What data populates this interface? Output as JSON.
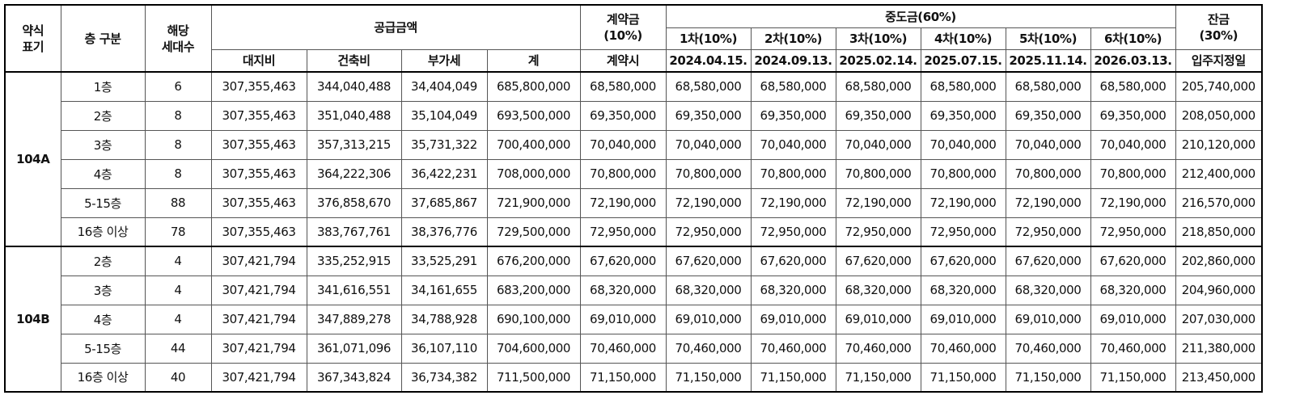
{
  "header": {
    "type_label": "약식\n표기",
    "floor_label": "층 구분",
    "units_label": "해당\n세대수",
    "supply_label": "공급금액",
    "supply_cols": [
      "대지비",
      "건축비",
      "부가세",
      "계"
    ],
    "contract_label": "계약금\n(10%)",
    "contract_sub": "계약시",
    "middle_label": "중도금(60%)",
    "middle_cols": [
      "1차(10%)",
      "2차(10%)",
      "3차(10%)",
      "4차(10%)",
      "5차(10%)",
      "6차(10%)"
    ],
    "middle_dates": [
      "2024.04.15.",
      "2024.09.13.",
      "2025.02.14.",
      "2025.07.15.",
      "2025.11.14.",
      "2026.03.13."
    ],
    "balance_label": "잔금\n(30%)",
    "balance_sub": "입주지정일"
  },
  "groups": [
    {
      "type": "104A",
      "rows": [
        {
          "floor": "1층",
          "units": "6",
          "land": "307,355,463",
          "build": "344,040,488",
          "vat": "34,404,049",
          "total": "685,800,000",
          "contract": "68,580,000",
          "middle": [
            "68,580,000",
            "68,580,000",
            "68,580,000",
            "68,580,000",
            "68,580,000",
            "68,580,000"
          ],
          "balance": "205,740,000"
        },
        {
          "floor": "2층",
          "units": "8",
          "land": "307,355,463",
          "build": "351,040,488",
          "vat": "35,104,049",
          "total": "693,500,000",
          "contract": "69,350,000",
          "middle": [
            "69,350,000",
            "69,350,000",
            "69,350,000",
            "69,350,000",
            "69,350,000",
            "69,350,000"
          ],
          "balance": "208,050,000"
        },
        {
          "floor": "3층",
          "units": "8",
          "land": "307,355,463",
          "build": "357,313,215",
          "vat": "35,731,322",
          "total": "700,400,000",
          "contract": "70,040,000",
          "middle": [
            "70,040,000",
            "70,040,000",
            "70,040,000",
            "70,040,000",
            "70,040,000",
            "70,040,000"
          ],
          "balance": "210,120,000"
        },
        {
          "floor": "4층",
          "units": "8",
          "land": "307,355,463",
          "build": "364,222,306",
          "vat": "36,422,231",
          "total": "708,000,000",
          "contract": "70,800,000",
          "middle": [
            "70,800,000",
            "70,800,000",
            "70,800,000",
            "70,800,000",
            "70,800,000",
            "70,800,000"
          ],
          "balance": "212,400,000"
        },
        {
          "floor": "5-15층",
          "units": "88",
          "land": "307,355,463",
          "build": "376,858,670",
          "vat": "37,685,867",
          "total": "721,900,000",
          "contract": "72,190,000",
          "middle": [
            "72,190,000",
            "72,190,000",
            "72,190,000",
            "72,190,000",
            "72,190,000",
            "72,190,000"
          ],
          "balance": "216,570,000"
        },
        {
          "floor": "16층 이상",
          "units": "78",
          "land": "307,355,463",
          "build": "383,767,761",
          "vat": "38,376,776",
          "total": "729,500,000",
          "contract": "72,950,000",
          "middle": [
            "72,950,000",
            "72,950,000",
            "72,950,000",
            "72,950,000",
            "72,950,000",
            "72,950,000"
          ],
          "balance": "218,850,000"
        }
      ]
    },
    {
      "type": "104B",
      "rows": [
        {
          "floor": "2층",
          "units": "4",
          "land": "307,421,794",
          "build": "335,252,915",
          "vat": "33,525,291",
          "total": "676,200,000",
          "contract": "67,620,000",
          "middle": [
            "67,620,000",
            "67,620,000",
            "67,620,000",
            "67,620,000",
            "67,620,000",
            "67,620,000"
          ],
          "balance": "202,860,000"
        },
        {
          "floor": "3층",
          "units": "4",
          "land": "307,421,794",
          "build": "341,616,551",
          "vat": "34,161,655",
          "total": "683,200,000",
          "contract": "68,320,000",
          "middle": [
            "68,320,000",
            "68,320,000",
            "68,320,000",
            "68,320,000",
            "68,320,000",
            "68,320,000"
          ],
          "balance": "204,960,000"
        },
        {
          "floor": "4층",
          "units": "4",
          "land": "307,421,794",
          "build": "347,889,278",
          "vat": "34,788,928",
          "total": "690,100,000",
          "contract": "69,010,000",
          "middle": [
            "69,010,000",
            "69,010,000",
            "69,010,000",
            "69,010,000",
            "69,010,000",
            "69,010,000"
          ],
          "balance": "207,030,000"
        },
        {
          "floor": "5-15층",
          "units": "44",
          "land": "307,421,794",
          "build": "361,071,096",
          "vat": "36,107,110",
          "total": "704,600,000",
          "contract": "70,460,000",
          "middle": [
            "70,460,000",
            "70,460,000",
            "70,460,000",
            "70,460,000",
            "70,460,000",
            "70,460,000"
          ],
          "balance": "211,380,000"
        },
        {
          "floor": "16층 이상",
          "units": "40",
          "land": "307,421,794",
          "build": "367,343,824",
          "vat": "36,734,382",
          "total": "711,500,000",
          "contract": "71,150,000",
          "middle": [
            "71,150,000",
            "71,150,000",
            "71,150,000",
            "71,150,000",
            "71,150,000",
            "71,150,000"
          ],
          "balance": "213,450,000"
        }
      ]
    }
  ]
}
